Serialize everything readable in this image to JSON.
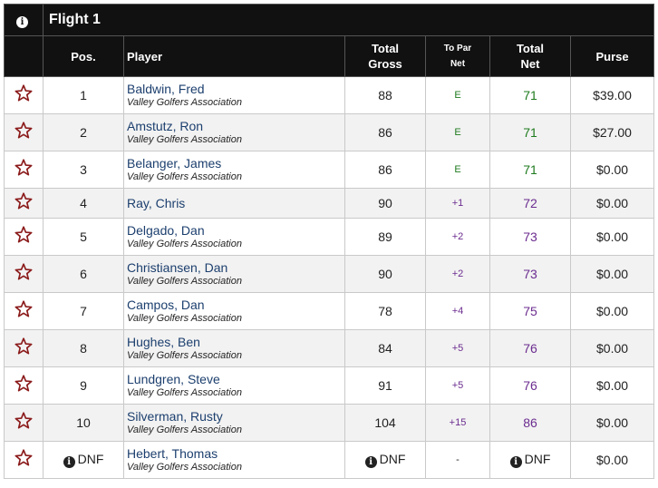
{
  "flight_title": "Flight 1",
  "headers": {
    "pos": "Pos.",
    "player": "Player",
    "total_gross_1": "Total",
    "total_gross_2": "Gross",
    "to_par_1": "To Par",
    "to_par_2": "Net",
    "total_net_1": "Total",
    "total_net_2": "Net",
    "purse": "Purse"
  },
  "info_glyph": "i",
  "rows": [
    {
      "pos": "1",
      "name": "Baldwin, Fred",
      "assoc": "Valley Golfers Association",
      "gross": "88",
      "topar": "E",
      "net": "71",
      "purse": "$39.00",
      "color": "#1d7a1d"
    },
    {
      "pos": "2",
      "name": "Amstutz, Ron",
      "assoc": "Valley Golfers Association",
      "gross": "86",
      "topar": "E",
      "net": "71",
      "purse": "$27.00",
      "color": "#1d7a1d"
    },
    {
      "pos": "3",
      "name": "Belanger, James",
      "assoc": "Valley Golfers Association",
      "gross": "86",
      "topar": "E",
      "net": "71",
      "purse": "$0.00",
      "color": "#1d7a1d"
    },
    {
      "pos": "4",
      "name": "Ray, Chris",
      "assoc": "",
      "gross": "90",
      "topar": "+1",
      "net": "72",
      "purse": "$0.00",
      "color": "#6b2c8f"
    },
    {
      "pos": "5",
      "name": "Delgado, Dan",
      "assoc": "Valley Golfers Association",
      "gross": "89",
      "topar": "+2",
      "net": "73",
      "purse": "$0.00",
      "color": "#6b2c8f"
    },
    {
      "pos": "6",
      "name": "Christiansen, Dan",
      "assoc": "Valley Golfers Association",
      "gross": "90",
      "topar": "+2",
      "net": "73",
      "purse": "$0.00",
      "color": "#6b2c8f"
    },
    {
      "pos": "7",
      "name": "Campos, Dan",
      "assoc": "Valley Golfers Association",
      "gross": "78",
      "topar": "+4",
      "net": "75",
      "purse": "$0.00",
      "color": "#6b2c8f"
    },
    {
      "pos": "8",
      "name": "Hughes, Ben",
      "assoc": "Valley Golfers Association",
      "gross": "84",
      "topar": "+5",
      "net": "76",
      "purse": "$0.00",
      "color": "#6b2c8f"
    },
    {
      "pos": "9",
      "name": "Lundgren, Steve",
      "assoc": "Valley Golfers Association",
      "gross": "91",
      "topar": "+5",
      "net": "76",
      "purse": "$0.00",
      "color": "#6b2c8f"
    },
    {
      "pos": "10",
      "name": "Silverman, Rusty",
      "assoc": "Valley Golfers Association",
      "gross": "104",
      "topar": "+15",
      "net": "86",
      "purse": "$0.00",
      "color": "#6b2c8f"
    },
    {
      "pos": "DNF",
      "name": "Hebert, Thomas",
      "assoc": "Valley Golfers Association",
      "gross": "DNF",
      "topar": "-",
      "net": "DNF",
      "purse": "$0.00",
      "color": "#222222",
      "dnf": true
    }
  ],
  "colors": {
    "header_bg": "#111111",
    "star": "#8b1a1a",
    "name": "#1c3f6e"
  }
}
